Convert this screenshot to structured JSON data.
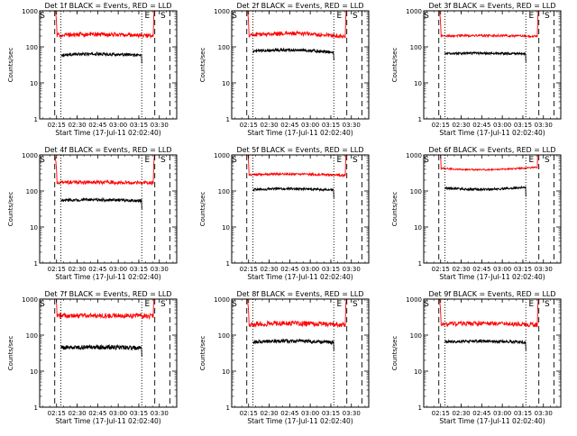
{
  "colors": {
    "events": "#000000",
    "lld": "#ff0000",
    "axes": "#000000",
    "background": "#ffffff"
  },
  "chart_data": [
    {
      "type": "line",
      "title": "Det 1f BLACK = Events, RED = LLD",
      "xlabel": "Start Time (17-Jul-11 02:02:40)",
      "ylabel": "Counts/sec",
      "yscale": "log",
      "ylim": [
        1,
        1000
      ],
      "xlim_min": [
        0,
        100
      ],
      "x_ticks": [
        {
          "t": 12.33,
          "label": "02:15"
        },
        {
          "t": 27.33,
          "label": "02:30"
        },
        {
          "t": 42.33,
          "label": "02:45"
        },
        {
          "t": 57.33,
          "label": "03:00"
        },
        {
          "t": 72.33,
          "label": "03:15"
        },
        {
          "t": 87.33,
          "label": "03:30"
        }
      ],
      "y_ticks": [
        1,
        10,
        100,
        1000
      ],
      "markers": [
        {
          "label": "S",
          "t": 2.0
        },
        {
          "label": "E",
          "t": 78.5
        },
        {
          "label": "S",
          "t": 90.0
        }
      ],
      "dashed_lines": [
        11.0,
        84.0,
        95.0
      ],
      "dotted_lines": [
        15.5,
        74.5
      ],
      "series": [
        {
          "name": "Events",
          "color": "#000000",
          "t_start": 15.5,
          "t_end": 75.0,
          "level": 60,
          "hump": 0.05,
          "noise": 0.04
        },
        {
          "name": "LLD",
          "color": "#ff0000",
          "t_start": 11.0,
          "t_end": 84.0,
          "level": 210,
          "hump": 0.06,
          "noise": 0.06
        }
      ]
    },
    {
      "type": "line",
      "title": "Det 2f BLACK = Events, RED = LLD",
      "xlabel": "Start Time (17-Jul-11 02:02:40)",
      "ylabel": "Counts/sec",
      "yscale": "log",
      "ylim": [
        1,
        1000
      ],
      "xlim_min": [
        0,
        100
      ],
      "x_ticks": [
        {
          "t": 12.33,
          "label": "02:15"
        },
        {
          "t": 27.33,
          "label": "02:30"
        },
        {
          "t": 42.33,
          "label": "02:45"
        },
        {
          "t": 57.33,
          "label": "03:00"
        },
        {
          "t": 72.33,
          "label": "03:15"
        },
        {
          "t": 87.33,
          "label": "03:30"
        }
      ],
      "y_ticks": [
        1,
        10,
        100,
        1000
      ],
      "markers": [
        {
          "label": "S",
          "t": 2.0
        },
        {
          "label": "E",
          "t": 78.5
        },
        {
          "label": "S",
          "t": 90.0
        }
      ],
      "dashed_lines": [
        11.0,
        84.0,
        95.0
      ],
      "dotted_lines": [
        15.5,
        74.5
      ],
      "series": [
        {
          "name": "Events",
          "color": "#000000",
          "t_start": 15.5,
          "t_end": 75.0,
          "level": 75,
          "hump": 0.1,
          "noise": 0.04
        },
        {
          "name": "LLD",
          "color": "#ff0000",
          "t_start": 11.0,
          "t_end": 84.0,
          "level": 210,
          "hump": 0.12,
          "noise": 0.06
        }
      ]
    },
    {
      "type": "line",
      "title": "Det 3f BLACK = Events, RED = LLD",
      "xlabel": "Start Time (17-Jul-11 02:02:40)",
      "ylabel": "Counts/sec",
      "yscale": "log",
      "ylim": [
        1,
        1000
      ],
      "xlim_min": [
        0,
        100
      ],
      "x_ticks": [
        {
          "t": 12.33,
          "label": "02:15"
        },
        {
          "t": 27.33,
          "label": "02:30"
        },
        {
          "t": 42.33,
          "label": "02:45"
        },
        {
          "t": 57.33,
          "label": "03:00"
        },
        {
          "t": 72.33,
          "label": "03:15"
        },
        {
          "t": 87.33,
          "label": "03:30"
        }
      ],
      "y_ticks": [
        1,
        10,
        100,
        1000
      ],
      "markers": [
        {
          "label": "S",
          "t": 2.0
        },
        {
          "label": "E",
          "t": 78.5
        },
        {
          "label": "S",
          "t": 90.0
        }
      ],
      "dashed_lines": [
        11.0,
        84.0,
        95.0
      ],
      "dotted_lines": [
        15.5,
        74.5
      ],
      "series": [
        {
          "name": "Events",
          "color": "#000000",
          "t_start": 15.5,
          "t_end": 75.0,
          "level": 65,
          "hump": 0.02,
          "noise": 0.03
        },
        {
          "name": "LLD",
          "color": "#ff0000",
          "t_start": 11.0,
          "t_end": 84.0,
          "level": 200,
          "hump": 0.03,
          "noise": 0.03
        }
      ]
    },
    {
      "type": "line",
      "title": "Det 4f BLACK = Events, RED = LLD",
      "xlabel": "Start Time (17-Jul-11 02:02:40)",
      "ylabel": "Counts/sec",
      "yscale": "log",
      "ylim": [
        1,
        1000
      ],
      "xlim_min": [
        0,
        100
      ],
      "x_ticks": [
        {
          "t": 12.33,
          "label": "02:15"
        },
        {
          "t": 27.33,
          "label": "02:30"
        },
        {
          "t": 42.33,
          "label": "02:45"
        },
        {
          "t": 57.33,
          "label": "03:00"
        },
        {
          "t": 72.33,
          "label": "03:15"
        },
        {
          "t": 87.33,
          "label": "03:30"
        }
      ],
      "y_ticks": [
        1,
        10,
        100,
        1000
      ],
      "markers": [
        {
          "label": "S",
          "t": 2.0
        },
        {
          "label": "E",
          "t": 78.5
        },
        {
          "label": "S",
          "t": 90.0
        }
      ],
      "dashed_lines": [
        11.0,
        84.0,
        95.0
      ],
      "dotted_lines": [
        15.5,
        74.5
      ],
      "series": [
        {
          "name": "Events",
          "color": "#000000",
          "t_start": 15.5,
          "t_end": 75.0,
          "level": 55,
          "hump": 0.03,
          "noise": 0.04
        },
        {
          "name": "LLD",
          "color": "#ff0000",
          "t_start": 11.0,
          "t_end": 84.0,
          "level": 170,
          "hump": 0.03,
          "noise": 0.05
        }
      ]
    },
    {
      "type": "line",
      "title": "Det 5f BLACK = Events, RED = LLD",
      "xlabel": "Start Time (17-Jul-11 02:02:40)",
      "ylabel": "Counts/sec",
      "yscale": "log",
      "ylim": [
        1,
        1000
      ],
      "xlim_min": [
        0,
        100
      ],
      "x_ticks": [
        {
          "t": 12.33,
          "label": "02:15"
        },
        {
          "t": 27.33,
          "label": "02:30"
        },
        {
          "t": 42.33,
          "label": "02:45"
        },
        {
          "t": 57.33,
          "label": "03:00"
        },
        {
          "t": 72.33,
          "label": "03:15"
        },
        {
          "t": 87.33,
          "label": "03:30"
        }
      ],
      "y_ticks": [
        1,
        10,
        100,
        1000
      ],
      "markers": [
        {
          "label": "S",
          "t": 2.0
        },
        {
          "label": "E",
          "t": 78.5
        },
        {
          "label": "S",
          "t": 90.0
        }
      ],
      "dashed_lines": [
        11.0,
        84.0,
        95.0
      ],
      "dotted_lines": [
        15.5,
        74.5
      ],
      "series": [
        {
          "name": "Events",
          "color": "#000000",
          "t_start": 15.5,
          "t_end": 75.0,
          "level": 110,
          "hump": 0.04,
          "noise": 0.03
        },
        {
          "name": "LLD",
          "color": "#ff0000",
          "t_start": 11.0,
          "t_end": 84.0,
          "level": 280,
          "hump": 0.05,
          "noise": 0.03
        }
      ]
    },
    {
      "type": "line",
      "title": "Det 6f BLACK = Events, RED = LLD",
      "xlabel": "Start Time (17-Jul-11 02:02:40)",
      "ylabel": "Counts/sec",
      "yscale": "log",
      "ylim": [
        1,
        1000
      ],
      "xlim_min": [
        0,
        100
      ],
      "x_ticks": [
        {
          "t": 12.33,
          "label": "02:15"
        },
        {
          "t": 27.33,
          "label": "02:30"
        },
        {
          "t": 42.33,
          "label": "02:45"
        },
        {
          "t": 57.33,
          "label": "03:00"
        },
        {
          "t": 72.33,
          "label": "03:15"
        },
        {
          "t": 87.33,
          "label": "03:30"
        }
      ],
      "y_ticks": [
        1,
        10,
        100,
        1000
      ],
      "markers": [
        {
          "label": "S",
          "t": 2.0
        },
        {
          "label": "E",
          "t": 78.5
        },
        {
          "label": "S",
          "t": 90.0
        }
      ],
      "dashed_lines": [
        11.0,
        84.0,
        95.0
      ],
      "dotted_lines": [
        15.5,
        74.5
      ],
      "series": [
        {
          "name": "Events",
          "color": "#000000",
          "t_start": 15.5,
          "t_end": 75.0,
          "level": 120,
          "hump": -0.08,
          "noise": 0.03
        },
        {
          "name": "LLD",
          "color": "#ff0000",
          "t_start": 11.0,
          "t_end": 84.0,
          "level": 430,
          "hump": -0.1,
          "noise": 0.02
        }
      ]
    },
    {
      "type": "line",
      "title": "Det 7f BLACK = Events, RED = LLD",
      "xlabel": "Start Time (17-Jul-11 02:02:40)",
      "ylabel": "Counts/sec",
      "yscale": "log",
      "ylim": [
        1,
        1000
      ],
      "xlim_min": [
        0,
        100
      ],
      "x_ticks": [
        {
          "t": 12.33,
          "label": "02:15"
        },
        {
          "t": 27.33,
          "label": "02:30"
        },
        {
          "t": 42.33,
          "label": "02:45"
        },
        {
          "t": 57.33,
          "label": "03:00"
        },
        {
          "t": 72.33,
          "label": "03:15"
        },
        {
          "t": 87.33,
          "label": "03:30"
        }
      ],
      "y_ticks": [
        1,
        10,
        100,
        1000
      ],
      "markers": [
        {
          "label": "S",
          "t": 2.0
        },
        {
          "label": "E",
          "t": 78.5
        },
        {
          "label": "S",
          "t": 90.0
        }
      ],
      "dashed_lines": [
        11.0,
        84.0,
        95.0
      ],
      "dotted_lines": [
        15.5,
        74.5
      ],
      "series": [
        {
          "name": "Events",
          "color": "#000000",
          "t_start": 15.5,
          "t_end": 75.0,
          "level": 45,
          "hump": 0.02,
          "noise": 0.06
        },
        {
          "name": "LLD",
          "color": "#ff0000",
          "t_start": 11.0,
          "t_end": 84.0,
          "level": 340,
          "hump": 0.02,
          "noise": 0.07
        }
      ]
    },
    {
      "type": "line",
      "title": "Det 8f BLACK = Events, RED = LLD",
      "xlabel": "Start Time (17-Jul-11 02:02:40)",
      "ylabel": "Counts/sec",
      "yscale": "log",
      "ylim": [
        1,
        1000
      ],
      "xlim_min": [
        0,
        100
      ],
      "x_ticks": [
        {
          "t": 12.33,
          "label": "02:15"
        },
        {
          "t": 27.33,
          "label": "02:30"
        },
        {
          "t": 42.33,
          "label": "02:45"
        },
        {
          "t": 57.33,
          "label": "03:00"
        },
        {
          "t": 72.33,
          "label": "03:15"
        },
        {
          "t": 87.33,
          "label": "03:30"
        }
      ],
      "y_ticks": [
        1,
        10,
        100,
        1000
      ],
      "markers": [
        {
          "label": "S",
          "t": 2.0
        },
        {
          "label": "E",
          "t": 78.5
        },
        {
          "label": "S",
          "t": 90.0
        }
      ],
      "dashed_lines": [
        11.0,
        84.0,
        95.0
      ],
      "dotted_lines": [
        15.5,
        74.5
      ],
      "series": [
        {
          "name": "Events",
          "color": "#000000",
          "t_start": 15.5,
          "t_end": 75.0,
          "level": 65,
          "hump": 0.05,
          "noise": 0.05
        },
        {
          "name": "LLD",
          "color": "#ff0000",
          "t_start": 11.0,
          "t_end": 84.0,
          "level": 200,
          "hump": 0.06,
          "noise": 0.07
        }
      ]
    },
    {
      "type": "line",
      "title": "Det 9f BLACK = Events, RED = LLD",
      "xlabel": "Start Time (17-Jul-11 02:02:40)",
      "ylabel": "Counts/sec",
      "yscale": "log",
      "ylim": [
        1,
        1000
      ],
      "xlim_min": [
        0,
        100
      ],
      "x_ticks": [
        {
          "t": 12.33,
          "label": "02:15"
        },
        {
          "t": 27.33,
          "label": "02:30"
        },
        {
          "t": 42.33,
          "label": "02:45"
        },
        {
          "t": 57.33,
          "label": "03:00"
        },
        {
          "t": 72.33,
          "label": "03:15"
        },
        {
          "t": 87.33,
          "label": "03:30"
        }
      ],
      "y_ticks": [
        1,
        10,
        100,
        1000
      ],
      "markers": [
        {
          "label": "S",
          "t": 2.0
        },
        {
          "label": "E",
          "t": 78.5
        },
        {
          "label": "S",
          "t": 90.0
        }
      ],
      "dashed_lines": [
        11.0,
        84.0,
        95.0
      ],
      "dotted_lines": [
        15.5,
        74.5
      ],
      "series": [
        {
          "name": "Events",
          "color": "#000000",
          "t_start": 15.5,
          "t_end": 75.0,
          "level": 65,
          "hump": 0.04,
          "noise": 0.04
        },
        {
          "name": "LLD",
          "color": "#ff0000",
          "t_start": 11.0,
          "t_end": 84.0,
          "level": 200,
          "hump": 0.05,
          "noise": 0.06
        }
      ]
    }
  ]
}
